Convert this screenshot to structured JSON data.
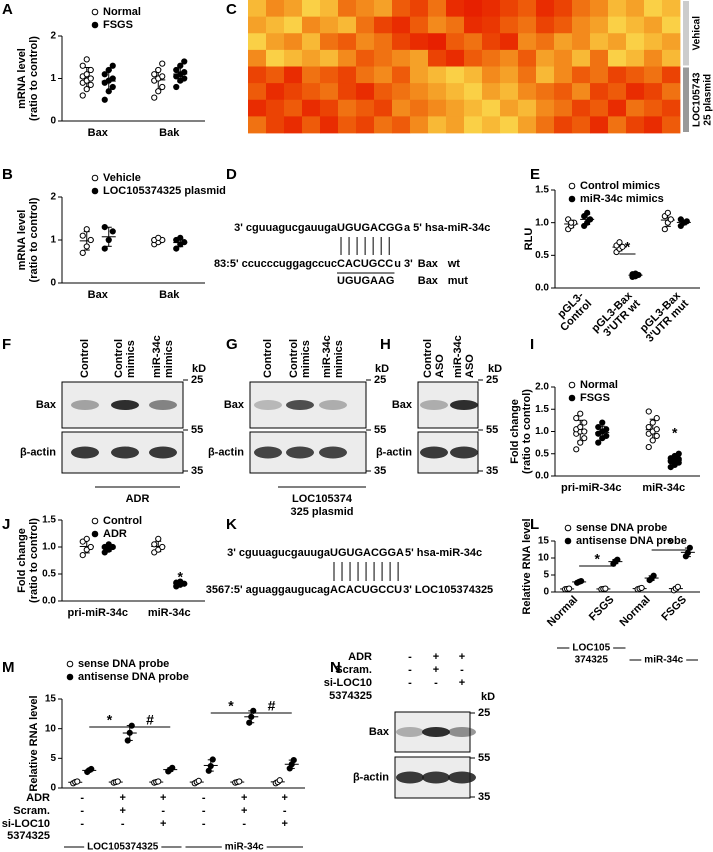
{
  "panel_labels": [
    "A",
    "B",
    "C",
    "D",
    "E",
    "F",
    "G",
    "H",
    "I",
    "J",
    "K",
    "L",
    "M",
    "N"
  ],
  "chart_data": [
    {
      "type": "scatter",
      "ylabel": [
        "mRNA level",
        "(ratio to control)"
      ],
      "categories": [
        [
          "Bax"
        ],
        [
          "Bak"
        ]
      ],
      "series": [
        {
          "name": "Normal",
          "marker": "open",
          "values": [
            [
              0.6,
              0.75,
              0.85,
              0.9,
              0.95,
              1.0,
              1.05,
              1.1,
              1.2,
              1.3,
              1.45
            ],
            [
              0.55,
              0.7,
              0.8,
              0.95,
              1.0,
              1.05,
              1.1,
              1.2,
              1.35
            ]
          ]
        },
        {
          "name": "FSGS",
          "marker": "filled",
          "values": [
            [
              0.5,
              0.7,
              0.8,
              0.9,
              0.95,
              1.0,
              1.1,
              1.2,
              1.3
            ],
            [
              0.8,
              0.95,
              1.0,
              1.05,
              1.1,
              1.15,
              1.2,
              1.3,
              1.4
            ]
          ]
        }
      ],
      "ylim": [
        0,
        2
      ],
      "yticks": [
        0,
        1,
        2
      ]
    },
    {
      "type": "scatter",
      "ylabel": [
        "mRNA level",
        "(ratio to control)"
      ],
      "categories": [
        [
          "Bax"
        ],
        [
          "Bak"
        ]
      ],
      "series": [
        {
          "name": "Vehicle",
          "marker": "open",
          "values": [
            [
              0.7,
              0.85,
              1.0,
              1.1,
              1.25
            ],
            [
              0.9,
              0.95,
              1.0,
              1.0,
              1.05
            ]
          ]
        },
        {
          "name": "LOC105374325 plasmid",
          "marker": "filled",
          "values": [
            [
              0.8,
              1.0,
              1.2,
              1.3
            ],
            [
              0.8,
              0.9,
              0.95,
              1.0,
              1.05
            ]
          ]
        }
      ],
      "ylim": [
        0,
        2
      ],
      "yticks": [
        0,
        1,
        2
      ]
    },
    {
      "type": "scatter",
      "ylabel": [
        "RLU"
      ],
      "categories": [
        [
          "pGL3-",
          "Control"
        ],
        [
          "pGL3-Bax",
          "3'UTR wt"
        ],
        [
          "pGL3-Bax",
          "3'UTR mut"
        ]
      ],
      "series": [
        {
          "name": "Control mimics",
          "marker": "open",
          "values": [
            [
              0.9,
              0.95,
              1.0,
              1.05,
              1.0
            ],
            [
              0.55,
              0.6,
              0.63,
              0.65,
              0.7
            ],
            [
              0.9,
              1.0,
              1.05,
              1.1,
              1.15
            ]
          ]
        },
        {
          "name": "miR-34c mimics",
          "marker": "filled",
          "values": [
            [
              0.95,
              1.0,
              1.05,
              1.1,
              1.15
            ],
            [
              0.17,
              0.18,
              0.2,
              0.21,
              0.22
            ],
            [
              0.95,
              1.0,
              1.02,
              1.05,
              1.0
            ]
          ]
        }
      ],
      "ylim": [
        0,
        1.5
      ],
      "yticks": [
        {
          "value": 0,
          "label": "0.0"
        },
        0.5,
        {
          "value": 1,
          "label": "1.0"
        },
        1.5
      ],
      "annotations": [
        "*"
      ]
    },
    {
      "type": "scatter",
      "ylabel": [
        "Fold change",
        "(ratio to control)"
      ],
      "categories": [
        [
          "pri-miR-34c"
        ],
        [
          "miR-34c"
        ]
      ],
      "series": [
        {
          "name": "Normal",
          "marker": "open",
          "values": [
            [
              0.6,
              0.75,
              0.85,
              0.95,
              1.0,
              1.0,
              1.05,
              1.1,
              1.2,
              1.3,
              1.4
            ],
            [
              0.65,
              0.8,
              0.9,
              0.95,
              1.0,
              1.05,
              1.1,
              1.2,
              1.3,
              1.45
            ]
          ]
        },
        {
          "name": "FSGS",
          "marker": "filled",
          "values": [
            [
              0.75,
              0.85,
              0.9,
              0.95,
              1.0,
              1.05,
              1.1,
              1.2
            ],
            [
              0.2,
              0.25,
              0.3,
              0.33,
              0.35,
              0.38,
              0.4,
              0.45,
              0.5
            ]
          ]
        }
      ],
      "ylim": [
        0,
        2
      ],
      "yticks": [
        {
          "value": 0,
          "label": "0.0"
        },
        0.5,
        {
          "value": 1,
          "label": "1.0"
        },
        1.5,
        {
          "value": 2,
          "label": "2.0"
        }
      ],
      "annotations": [
        "*"
      ]
    },
    {
      "type": "scatter",
      "ylabel": [
        "Fold change",
        "(ratio to control)"
      ],
      "categories": [
        [
          "pri-miR-34c"
        ],
        [
          "miR-34c"
        ]
      ],
      "series": [
        {
          "name": "Control",
          "marker": "open",
          "values": [
            [
              0.85,
              0.95,
              1.0,
              1.1,
              1.15
            ],
            [
              0.9,
              0.95,
              1.0,
              1.05,
              1.15
            ]
          ]
        },
        {
          "name": "ADR",
          "marker": "filled",
          "values": [
            [
              0.9,
              0.95,
              1.0,
              1.0,
              1.05
            ],
            [
              0.27,
              0.3,
              0.32,
              0.34,
              0.36
            ]
          ]
        }
      ],
      "ylim": [
        0,
        1.5
      ],
      "yticks": [
        {
          "value": 0,
          "label": "0.0"
        },
        0.5,
        {
          "value": 1,
          "label": "1.0"
        },
        1.5
      ],
      "annotations": [
        "*"
      ]
    },
    {
      "type": "scatter",
      "ylabel": [
        "Relative RNA level"
      ],
      "categories": [
        [
          "Normal"
        ],
        [
          "FSGS"
        ],
        [
          "Normal"
        ],
        [
          "FSGS"
        ]
      ],
      "category_groups": [
        [
          "LOC105",
          "374325"
        ],
        [
          "miR-34c"
        ]
      ],
      "series": [
        {
          "name": "sense DNA probe",
          "marker": "open",
          "values": [
            [
              0.8,
              0.9,
              1.0
            ],
            [
              0.8,
              0.9,
              1.0
            ],
            [
              0.8,
              1.0,
              1.2
            ],
            [
              0.5,
              1.0,
              1.5
            ]
          ]
        },
        {
          "name": "antisense DNA probe",
          "marker": "filled",
          "values": [
            [
              2.7,
              3.0,
              3.2
            ],
            [
              8.3,
              9.0,
              9.5
            ],
            [
              3.5,
              4.0,
              4.8
            ],
            [
              10.5,
              11.5,
              13
            ]
          ]
        }
      ],
      "ylim": [
        0,
        15
      ],
      "yticks": [
        0,
        5,
        10,
        15
      ],
      "annotations": [
        "*",
        "*"
      ]
    },
    {
      "type": "scatter",
      "ylabel": [
        "Relative RNA level"
      ],
      "conditions": [
        {
          "label": [
            "ADR"
          ],
          "marks": [
            "-",
            "+",
            "+",
            "-",
            "+",
            "+"
          ]
        },
        {
          "label": [
            "Scram."
          ],
          "marks": [
            "-",
            "+",
            "-",
            "-",
            "+",
            "-"
          ]
        },
        {
          "label": [
            "si-LOC10",
            "5374325"
          ],
          "marks": [
            "-",
            "-",
            "+",
            "-",
            "-",
            "+"
          ]
        }
      ],
      "category_groups": [
        [
          "LOC105374325"
        ],
        [
          "miR-34c"
        ]
      ],
      "series": [
        {
          "name": "sense DNA probe",
          "marker": "open",
          "values": [
            [
              0.8,
              1.0,
              1.1
            ],
            [
              0.9,
              1.0,
              1.1
            ],
            [
              0.9,
              1.0,
              1.1
            ],
            [
              0.8,
              1.0,
              1.2
            ],
            [
              0.9,
              1.0,
              1.1
            ],
            [
              0.8,
              1.0,
              1.3
            ]
          ]
        },
        {
          "name": "antisense DNA probe",
          "marker": "filled",
          "values": [
            [
              2.7,
              3.0,
              3.2
            ],
            [
              8.0,
              9.3,
              10.5
            ],
            [
              2.8,
              3.1,
              3.4
            ],
            [
              2.9,
              3.7,
              4.8
            ],
            [
              11,
              12,
              13
            ],
            [
              3.3,
              4.0,
              4.7
            ]
          ]
        }
      ],
      "ylim": [
        0,
        15
      ],
      "yticks": [
        0,
        5,
        10,
        15
      ],
      "annotations": [
        "*",
        "#",
        "*",
        "#"
      ]
    }
  ],
  "heatmap": {
    "groups": [
      {
        "label": [
          "Vehical"
        ],
        "rows": [
          [
            0.3,
            0.5,
            0.4,
            0.2,
            0.3,
            0.6,
            0.5,
            0.4,
            0.7,
            0.8,
            0.6,
            0.9,
            0.95,
            0.9,
            0.8,
            0.7,
            0.9,
            0.8,
            0.6,
            0.5,
            0.3,
            0.4,
            0.2,
            0.3
          ],
          [
            0.4,
            0.3,
            0.2,
            0.5,
            0.4,
            0.3,
            0.6,
            0.8,
            0.9,
            0.7,
            0.5,
            0.6,
            0.9,
            0.85,
            0.7,
            0.6,
            0.8,
            0.7,
            0.5,
            0.4,
            0.2,
            0.3,
            0.4,
            0.2
          ],
          [
            0.2,
            0.4,
            0.5,
            0.3,
            0.6,
            0.7,
            0.5,
            0.6,
            0.8,
            0.9,
            0.95,
            0.7,
            0.6,
            0.8,
            0.9,
            0.5,
            0.6,
            0.4,
            0.5,
            0.3,
            0.4,
            0.2,
            0.3,
            0.4
          ],
          [
            0.5,
            0.2,
            0.3,
            0.4,
            0.3,
            0.5,
            0.7,
            0.6,
            0.5,
            0.4,
            0.8,
            0.9,
            0.7,
            0.6,
            0.5,
            0.7,
            0.4,
            0.5,
            0.3,
            0.6,
            0.2,
            0.3,
            0.5,
            0.3
          ]
        ]
      },
      {
        "label": [
          "LOC105743",
          "25 plasmid"
        ],
        "rows": [
          [
            0.8,
            0.7,
            0.9,
            0.6,
            0.7,
            0.8,
            0.6,
            0.5,
            0.7,
            0.4,
            0.3,
            0.2,
            0.3,
            0.5,
            0.4,
            0.6,
            0.3,
            0.5,
            0.7,
            0.6,
            0.8,
            0.7,
            0.6,
            0.8
          ],
          [
            0.7,
            0.9,
            0.8,
            0.7,
            0.6,
            0.8,
            0.9,
            0.7,
            0.6,
            0.5,
            0.4,
            0.3,
            0.2,
            0.4,
            0.3,
            0.5,
            0.6,
            0.7,
            0.5,
            0.8,
            0.7,
            0.9,
            0.8,
            0.6
          ],
          [
            0.9,
            0.8,
            0.7,
            0.9,
            0.8,
            0.6,
            0.7,
            0.8,
            0.5,
            0.6,
            0.5,
            0.4,
            0.3,
            0.2,
            0.4,
            0.3,
            0.5,
            0.6,
            0.8,
            0.7,
            0.9,
            0.6,
            0.7,
            0.8
          ],
          [
            0.6,
            0.8,
            0.9,
            0.7,
            0.9,
            0.7,
            0.8,
            0.6,
            0.7,
            0.5,
            0.3,
            0.4,
            0.2,
            0.3,
            0.2,
            0.4,
            0.6,
            0.8,
            0.7,
            0.9,
            0.6,
            0.8,
            0.9,
            0.7
          ]
        ]
      }
    ]
  },
  "sequences": {
    "D": {
      "mirna": [
        "3' cguuagucgauuga",
        "UGUGACGG",
        "a 5' hsa-miR-34c"
      ],
      "target": [
        "83:5' ccucccuggagccuc",
        "CACUGCC",
        "u 3'"
      ],
      "target_name": "Bax",
      "target_tag": "wt",
      "mutant": "UGUGAAG",
      "mutant_label": "Bax",
      "mutant_tag": "mut"
    },
    "K": {
      "mirna": [
        "3' cguuagucgauuga",
        "UGUGACGGA",
        "5' hsa-miR-34c"
      ],
      "target": [
        "3567:5' aguaggaugucag",
        "ACACUGCCU",
        "3' LOC105374325"
      ]
    }
  },
  "blots": {
    "F": {
      "lanes": [
        [
          "Control"
        ],
        [
          "Control",
          "mimics"
        ],
        [
          "miR-34c",
          "mimics"
        ]
      ],
      "rows": [
        "Bax",
        "β-actin"
      ],
      "unit": "kD",
      "markers": [
        25,
        55,
        35
      ],
      "treatment": [
        "ADR"
      ]
    },
    "G": {
      "lanes": [
        [
          "Control"
        ],
        [
          "Control",
          "mimics"
        ],
        [
          "miR-34c",
          "mimics"
        ]
      ],
      "rows": [
        "Bax",
        "β-actin"
      ],
      "unit": "kD",
      "markers": [
        25,
        55,
        35
      ],
      "treatment": [
        "LOC105374",
        "325 plasmid"
      ]
    },
    "H": {
      "lanes": [
        [
          "Control",
          "ASO"
        ],
        [
          "miR-34c",
          "ASO"
        ]
      ],
      "rows": [
        "Bax",
        "β-actin"
      ],
      "unit": "kD",
      "markers": [
        25,
        55,
        35
      ]
    },
    "N": {
      "conditions": [
        {
          "label": [
            "ADR"
          ],
          "marks": [
            "-",
            "+",
            "+"
          ]
        },
        {
          "label": [
            "Scram."
          ],
          "marks": [
            "-",
            "+",
            "-"
          ]
        },
        {
          "label": [
            "si-LOC10",
            "5374325"
          ],
          "marks": [
            "-",
            "-",
            "+"
          ]
        }
      ],
      "rows": [
        "Bax",
        "β-actin"
      ],
      "unit": "kD",
      "markers": [
        25,
        55,
        35
      ]
    }
  }
}
